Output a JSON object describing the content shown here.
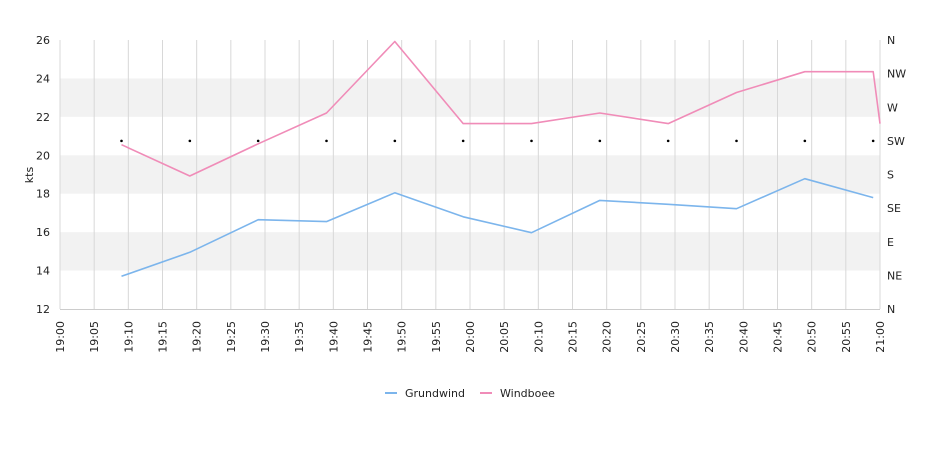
{
  "chart_data": {
    "type": "line",
    "ylabel": "kts",
    "ylim": [
      12,
      26
    ],
    "yticks": [
      12,
      14,
      16,
      18,
      20,
      22,
      24,
      26
    ],
    "y2ticks": [
      "N",
      "NE",
      "E",
      "SE",
      "S",
      "SW",
      "W",
      "NW",
      "N"
    ],
    "xticks": [
      "19:00",
      "19:05",
      "19:10",
      "19:15",
      "19:20",
      "19:25",
      "19:30",
      "19:35",
      "19:40",
      "19:45",
      "19:50",
      "19:55",
      "20:00",
      "20:05",
      "20:10",
      "20:15",
      "20:20",
      "20:25",
      "20:30",
      "20:35",
      "20:40",
      "20:45",
      "20:50",
      "20:55",
      "21:00"
    ],
    "grid": true,
    "legend_position": "bottom",
    "series": [
      {
        "name": "Grundwind",
        "color": "#7cb5ec",
        "points": [
          [
            "19:09",
            13.7
          ],
          [
            "19:19",
            14.95
          ],
          [
            "19:29",
            16.65
          ],
          [
            "19:39",
            16.55
          ],
          [
            "19:49",
            18.05
          ],
          [
            "19:59",
            16.8
          ],
          [
            "20:09",
            15.97
          ],
          [
            "20:19",
            17.65
          ],
          [
            "20:29",
            17.45
          ],
          [
            "20:39",
            17.22
          ],
          [
            "20:49",
            18.78
          ],
          [
            "20:59",
            17.8
          ]
        ]
      },
      {
        "name": "Windboee",
        "color": "#f08cb8",
        "points": [
          [
            "19:09",
            20.55
          ],
          [
            "19:19",
            18.92
          ],
          [
            "19:29",
            20.6
          ],
          [
            "19:39",
            22.2
          ],
          [
            "19:49",
            25.92
          ],
          [
            "19:59",
            21.65
          ],
          [
            "20:09",
            21.65
          ],
          [
            "20:19",
            22.2
          ],
          [
            "20:29",
            21.65
          ],
          [
            "20:39",
            23.27
          ],
          [
            "20:49",
            24.35
          ],
          [
            "20:59",
            24.35
          ],
          [
            "21:00",
            21.65
          ]
        ]
      }
    ],
    "direction_markers": {
      "color": "#000000",
      "points": [
        [
          "19:09",
          "SW"
        ],
        [
          "19:19",
          "SW"
        ],
        [
          "19:29",
          "SW"
        ],
        [
          "19:39",
          "SW"
        ],
        [
          "19:49",
          "SW"
        ],
        [
          "19:59",
          "SW"
        ],
        [
          "20:09",
          "SW"
        ],
        [
          "20:19",
          "SW"
        ],
        [
          "20:29",
          "SW"
        ],
        [
          "20:39",
          "SW"
        ],
        [
          "20:49",
          "SW"
        ],
        [
          "20:59",
          "SW"
        ]
      ]
    }
  }
}
